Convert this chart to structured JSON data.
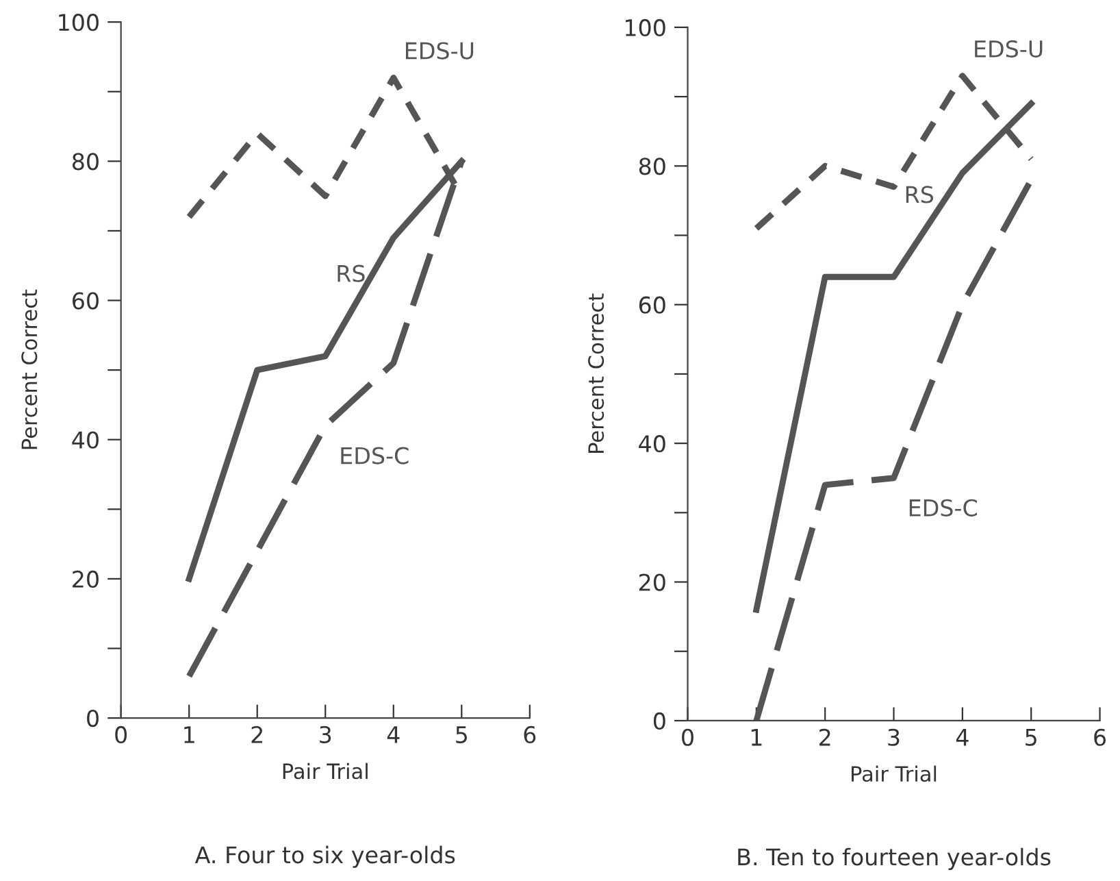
{
  "chart_data": [
    {
      "type": "line",
      "title": "A. Four to six year-olds",
      "xlabel": "Pair Trial",
      "ylabel": "Percent Correct",
      "x": [
        1,
        2,
        3,
        4,
        5
      ],
      "series": [
        {
          "name": "EDS-U",
          "color": "#555555",
          "line_style": "dotted",
          "values": [
            72,
            84,
            75,
            92,
            75
          ]
        },
        {
          "name": "RS",
          "color": "#555555",
          "line_style": "solid",
          "values": [
            20,
            50,
            52,
            69,
            80
          ]
        },
        {
          "name": "EDS-C",
          "color": "#555555",
          "line_style": "dashed",
          "values": [
            6,
            24,
            42,
            51,
            80
          ]
        }
      ],
      "xlim": [
        0,
        6
      ],
      "xticks": [
        0,
        1,
        2,
        3,
        4,
        5,
        6
      ],
      "ylim": [
        0,
        100
      ],
      "yticks": [
        0,
        {
          "value": 10,
          "label": null
        },
        20,
        {
          "value": 30,
          "label": null
        },
        40,
        {
          "value": 50,
          "label": null
        },
        60,
        {
          "value": 70,
          "label": null
        },
        80,
        {
          "value": 90,
          "label": null
        },
        100
      ],
      "grid": false,
      "legend": false,
      "marker": "none"
    },
    {
      "type": "line",
      "title": "B. Ten to fourteen year-olds",
      "xlabel": "Pair Trial",
      "ylabel": "Percent Correct",
      "x": [
        1,
        2,
        3,
        4,
        5
      ],
      "series": [
        {
          "name": "EDS-U",
          "color": "#555555",
          "line_style": "dotted",
          "values": [
            71,
            80,
            77,
            93,
            81
          ]
        },
        {
          "name": "RS",
          "color": "#555555",
          "line_style": "solid",
          "values": [
            16,
            64,
            64,
            79,
            89
          ]
        },
        {
          "name": "EDS-C",
          "color": "#555555",
          "line_style": "dashed",
          "values": [
            0,
            34,
            35,
            60,
            78
          ]
        }
      ],
      "xlim": [
        0,
        6
      ],
      "xticks": [
        0,
        1,
        2,
        3,
        4,
        5,
        6
      ],
      "ylim": [
        0,
        100
      ],
      "yticks": [
        0,
        {
          "value": 10,
          "label": null
        },
        20,
        {
          "value": 30,
          "label": null
        },
        40,
        {
          "value": 50,
          "label": null
        },
        60,
        {
          "value": 70,
          "label": null
        },
        80,
        {
          "value": 90,
          "label": null
        },
        100
      ],
      "grid": false,
      "legend": false,
      "marker": "none"
    }
  ]
}
